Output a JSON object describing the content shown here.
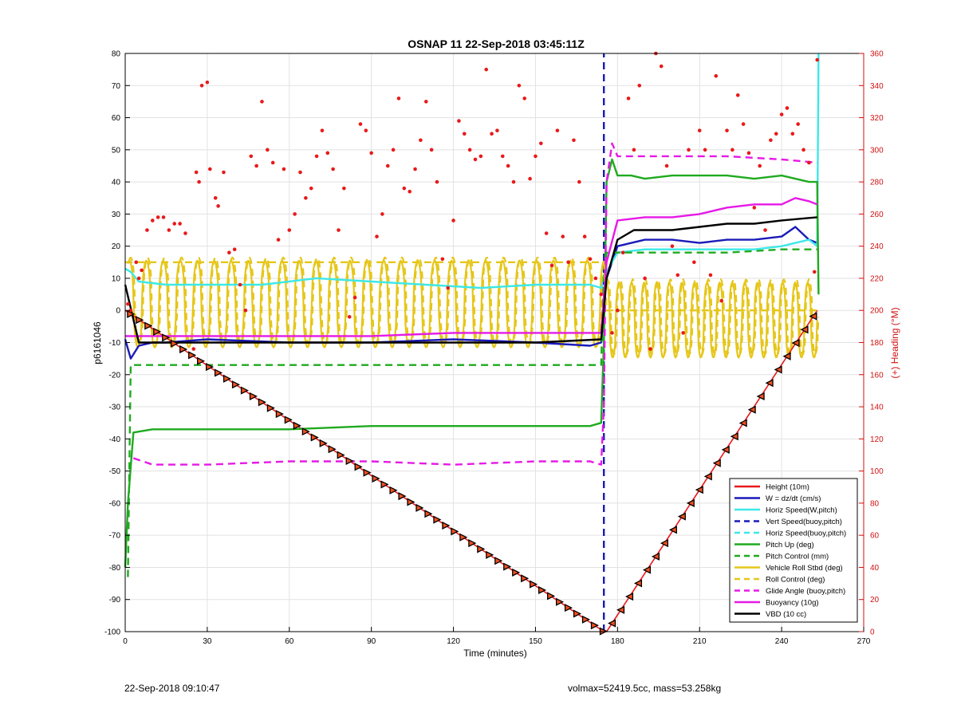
{
  "chart_data": {
    "type": "line",
    "title": "OSNAP 11 22-Sep-2018 03:45:11Z",
    "xlabel": "Time (minutes)",
    "ylabel_left": "p6161046",
    "ylabel_right": "(+) Heading (°M)",
    "xlim": [
      0,
      270
    ],
    "ylim_left": [
      -100,
      80
    ],
    "ylim_right": [
      0,
      360
    ],
    "xticks": [
      0,
      30,
      60,
      90,
      120,
      150,
      180,
      210,
      240,
      270
    ],
    "yticks_left": [
      -100,
      -90,
      -80,
      -70,
      -60,
      -50,
      -40,
      -30,
      -20,
      -10,
      0,
      10,
      20,
      30,
      40,
      50,
      60,
      70,
      80
    ],
    "yticks_right": [
      0,
      20,
      40,
      60,
      80,
      100,
      120,
      140,
      160,
      180,
      200,
      220,
      240,
      260,
      280,
      300,
      320,
      340,
      360
    ],
    "grid": true,
    "legend_position": "bottom-right",
    "legend": [
      {
        "label": "Height (10m)",
        "color": "#e8191b",
        "style": "solid"
      },
      {
        "label": "W = dz/dt (cm/s)",
        "color": "#1a1ab8",
        "style": "solid"
      },
      {
        "label": "Horiz Speed(W,pitch)",
        "color": "#3de8e8",
        "style": "solid"
      },
      {
        "label": "Vert Speed(buoy,pitch)",
        "color": "#1a1ab8",
        "style": "dashed"
      },
      {
        "label": "Horiz Speed(buoy,pitch)",
        "color": "#3de8e8",
        "style": "dashed"
      },
      {
        "label": "Pitch Up (deg)",
        "color": "#1faa1f",
        "style": "solid"
      },
      {
        "label": "Pitch Control (mm)",
        "color": "#1faa1f",
        "style": "dashed"
      },
      {
        "label": "Vehicle Roll Stbd (deg)",
        "color": "#e6c619",
        "style": "solid"
      },
      {
        "label": "Roll Control (deg)",
        "color": "#e6c619",
        "style": "dashed"
      },
      {
        "label": "Glide Angle (buoy,pitch)",
        "color": "#e619e6",
        "style": "dashed"
      },
      {
        "label": "Buoyancy (10g)",
        "color": "#e619e6",
        "style": "solid"
      },
      {
        "label": "VBD (10 cc)",
        "color": "#000000",
        "style": "solid"
      }
    ],
    "series": [
      {
        "name": "Height (10m)",
        "x": [
          0,
          175,
          176,
          253
        ],
        "y": [
          0,
          -100,
          -100,
          0
        ]
      },
      {
        "name": "W = dz/dt (cm/s)",
        "x": [
          0,
          2,
          5,
          10,
          15,
          30,
          60,
          90,
          120,
          150,
          170,
          174,
          176,
          180,
          190,
          200,
          210,
          220,
          230,
          240,
          245,
          250,
          253
        ],
        "y": [
          -9,
          -15,
          -11,
          -10,
          -10,
          -9,
          -10,
          -10,
          -9,
          -10,
          -11,
          -10,
          10,
          20,
          22,
          22,
          21,
          22,
          22,
          23,
          26,
          22,
          21
        ]
      },
      {
        "name": "Horiz Speed(W,pitch)",
        "x": [
          0,
          2,
          5,
          15,
          30,
          50,
          70,
          90,
          110,
          130,
          150,
          170,
          174,
          176,
          180,
          190,
          200,
          210,
          220,
          230,
          240,
          250,
          253,
          253.5
        ],
        "y": [
          13,
          12,
          9,
          8,
          8,
          8,
          10,
          9,
          8,
          7,
          8,
          8,
          7,
          12,
          18,
          19,
          19,
          19,
          19,
          19,
          20,
          22,
          20,
          80
        ]
      },
      {
        "name": "Vert Speed(buoy,pitch)",
        "x": [
          175,
          175,
          175
        ],
        "y": [
          -100,
          0,
          80
        ]
      },
      {
        "name": "Pitch Up (deg)",
        "x": [
          0,
          1,
          3,
          10,
          30,
          60,
          90,
          120,
          150,
          170,
          174,
          175,
          176,
          178,
          180,
          185,
          190,
          200,
          210,
          220,
          230,
          240,
          250,
          253,
          253.5
        ],
        "y": [
          -80,
          -60,
          -38,
          -37,
          -37,
          -37,
          -36,
          -36,
          -36,
          -36,
          -35,
          -10,
          40,
          47,
          42,
          42,
          41,
          42,
          42,
          42,
          41,
          42,
          40,
          40,
          5
        ]
      },
      {
        "name": "Pitch Control (mm)",
        "x": [
          1,
          2,
          3,
          174,
          175,
          176,
          180,
          200,
          220,
          240,
          253
        ],
        "y": [
          -83,
          -17,
          -17,
          -17,
          12,
          18,
          18,
          18,
          18,
          19,
          19
        ]
      },
      {
        "name": "Roll Control (deg)",
        "x": [
          0,
          175,
          176,
          253
        ],
        "y": [
          15,
          15,
          0,
          0
        ]
      },
      {
        "name": "Glide Angle (buoy,pitch)",
        "x": [
          3,
          10,
          30,
          60,
          90,
          120,
          150,
          170,
          174,
          175,
          176,
          178,
          180,
          200,
          220,
          240,
          253
        ],
        "y": [
          -46,
          -48,
          -48,
          -47,
          -47,
          -48,
          -47,
          -47,
          -48,
          -30,
          40,
          52,
          48,
          48,
          48,
          47,
          46
        ]
      },
      {
        "name": "Buoyancy (10g)",
        "x": [
          0,
          30,
          60,
          90,
          120,
          150,
          174,
          176,
          180,
          190,
          200,
          210,
          220,
          230,
          240,
          245,
          250,
          253
        ],
        "y": [
          -8,
          -8,
          -8,
          -8,
          -7,
          -7,
          -7,
          15,
          28,
          29,
          29,
          30,
          32,
          33,
          33,
          35,
          34,
          33
        ]
      },
      {
        "name": "VBD (10 cc)",
        "x": [
          0,
          5,
          30,
          60,
          90,
          120,
          150,
          174,
          176,
          180,
          186,
          200,
          210,
          220,
          230,
          240,
          253
        ],
        "y": [
          8,
          -10,
          -10,
          -10,
          -10,
          -10,
          -10,
          -9,
          10,
          22,
          25,
          25,
          26,
          27,
          27,
          28,
          29
        ]
      }
    ],
    "roll_stbd_oscillation": {
      "name": "Vehicle Roll Stbd (deg)",
      "descent_center": 0,
      "descent_amplitude": 15,
      "climb_center": -3,
      "climb_amplitude": 13
    },
    "heading_points": [
      [
        1,
        204
      ],
      [
        2,
        200
      ],
      [
        4,
        230
      ],
      [
        5,
        220
      ],
      [
        6,
        225
      ],
      [
        8,
        250
      ],
      [
        10,
        256
      ],
      [
        12,
        258
      ],
      [
        14,
        258
      ],
      [
        16,
        250
      ],
      [
        18,
        254
      ],
      [
        20,
        254
      ],
      [
        22,
        248
      ],
      [
        25,
        176
      ],
      [
        26,
        286
      ],
      [
        27,
        280
      ],
      [
        28,
        340
      ],
      [
        30,
        342
      ],
      [
        31,
        288
      ],
      [
        33,
        270
      ],
      [
        34,
        265
      ],
      [
        36,
        286
      ],
      [
        38,
        236
      ],
      [
        40,
        238
      ],
      [
        42,
        216
      ],
      [
        44,
        200
      ],
      [
        46,
        296
      ],
      [
        48,
        290
      ],
      [
        50,
        330
      ],
      [
        52,
        300
      ],
      [
        54,
        292
      ],
      [
        56,
        244
      ],
      [
        58,
        288
      ],
      [
        60,
        250
      ],
      [
        62,
        260
      ],
      [
        64,
        286
      ],
      [
        66,
        270
      ],
      [
        68,
        276
      ],
      [
        70,
        296
      ],
      [
        72,
        312
      ],
      [
        74,
        298
      ],
      [
        76,
        288
      ],
      [
        78,
        250
      ],
      [
        80,
        276
      ],
      [
        82,
        196
      ],
      [
        84,
        208
      ],
      [
        86,
        316
      ],
      [
        88,
        312
      ],
      [
        90,
        298
      ],
      [
        92,
        246
      ],
      [
        94,
        260
      ],
      [
        96,
        290
      ],
      [
        98,
        300
      ],
      [
        100,
        332
      ],
      [
        102,
        276
      ],
      [
        104,
        274
      ],
      [
        106,
        288
      ],
      [
        108,
        306
      ],
      [
        110,
        330
      ],
      [
        112,
        300
      ],
      [
        114,
        280
      ],
      [
        116,
        232
      ],
      [
        118,
        214
      ],
      [
        120,
        256
      ],
      [
        122,
        318
      ],
      [
        124,
        310
      ],
      [
        126,
        300
      ],
      [
        128,
        294
      ],
      [
        130,
        296
      ],
      [
        132,
        350
      ],
      [
        134,
        310
      ],
      [
        136,
        312
      ],
      [
        138,
        296
      ],
      [
        140,
        290
      ],
      [
        142,
        280
      ],
      [
        144,
        340
      ],
      [
        146,
        332
      ],
      [
        148,
        282
      ],
      [
        150,
        296
      ],
      [
        152,
        304
      ],
      [
        154,
        248
      ],
      [
        156,
        228
      ],
      [
        158,
        312
      ],
      [
        160,
        246
      ],
      [
        162,
        230
      ],
      [
        164,
        306
      ],
      [
        166,
        280
      ],
      [
        168,
        246
      ],
      [
        170,
        232
      ],
      [
        172,
        220
      ],
      [
        174,
        210
      ],
      [
        178,
        186
      ],
      [
        180,
        200
      ],
      [
        182,
        236
      ],
      [
        184,
        332
      ],
      [
        186,
        300
      ],
      [
        188,
        340
      ],
      [
        190,
        220
      ],
      [
        192,
        176
      ],
      [
        194,
        360
      ],
      [
        196,
        352
      ],
      [
        198,
        290
      ],
      [
        200,
        240
      ],
      [
        202,
        222
      ],
      [
        204,
        186
      ],
      [
        206,
        300
      ],
      [
        208,
        230
      ],
      [
        210,
        312
      ],
      [
        212,
        300
      ],
      [
        214,
        222
      ],
      [
        216,
        346
      ],
      [
        218,
        206
      ],
      [
        220,
        312
      ],
      [
        222,
        300
      ],
      [
        224,
        334
      ],
      [
        226,
        316
      ],
      [
        228,
        298
      ],
      [
        230,
        264
      ],
      [
        232,
        290
      ],
      [
        234,
        250
      ],
      [
        236,
        306
      ],
      [
        238,
        310
      ],
      [
        240,
        322
      ],
      [
        242,
        326
      ],
      [
        244,
        310
      ],
      [
        246,
        316
      ],
      [
        248,
        300
      ],
      [
        250,
        292
      ],
      [
        252,
        224
      ],
      [
        253,
        356
      ]
    ],
    "heading_color": "#e8191b"
  },
  "footer": {
    "timestamp": "22-Sep-2018 09:10:47",
    "summary": "volmax=52419.5cc, mass=53.258kg"
  }
}
